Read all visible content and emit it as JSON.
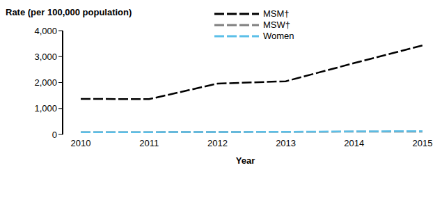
{
  "chart_data": {
    "type": "line",
    "y_label": "Rate (per 100,000 population)",
    "x_label": "Year",
    "x": [
      2010,
      2011,
      2012,
      2013,
      2014,
      2015
    ],
    "xlim": [
      2010,
      2015
    ],
    "xticks": [
      2010,
      2011,
      2012,
      2013,
      2014,
      2015
    ],
    "ylim": [
      0,
      4000
    ],
    "yticks": [
      0,
      {
        "value": 1000,
        "label": "1,000"
      },
      {
        "value": 2000,
        "label": "2,000"
      },
      {
        "value": 3000,
        "label": "3,000"
      },
      {
        "value": 4000,
        "label": "4,000"
      }
    ],
    "grid": false,
    "legend": "top",
    "series": [
      {
        "name": "MSM†",
        "color": "#000000",
        "line_style": "dashed",
        "values": [
          1370,
          1360,
          1960,
          2050,
          2750,
          3430
        ]
      },
      {
        "name": "MSW†",
        "color": "#808080",
        "line_style": "dashed",
        "values": [
          90,
          90,
          95,
          100,
          105,
          110
        ]
      },
      {
        "name": "Women",
        "color": "#5bbfe8",
        "line_style": "dashed",
        "values": [
          85,
          90,
          95,
          100,
          120,
          130
        ]
      }
    ]
  }
}
